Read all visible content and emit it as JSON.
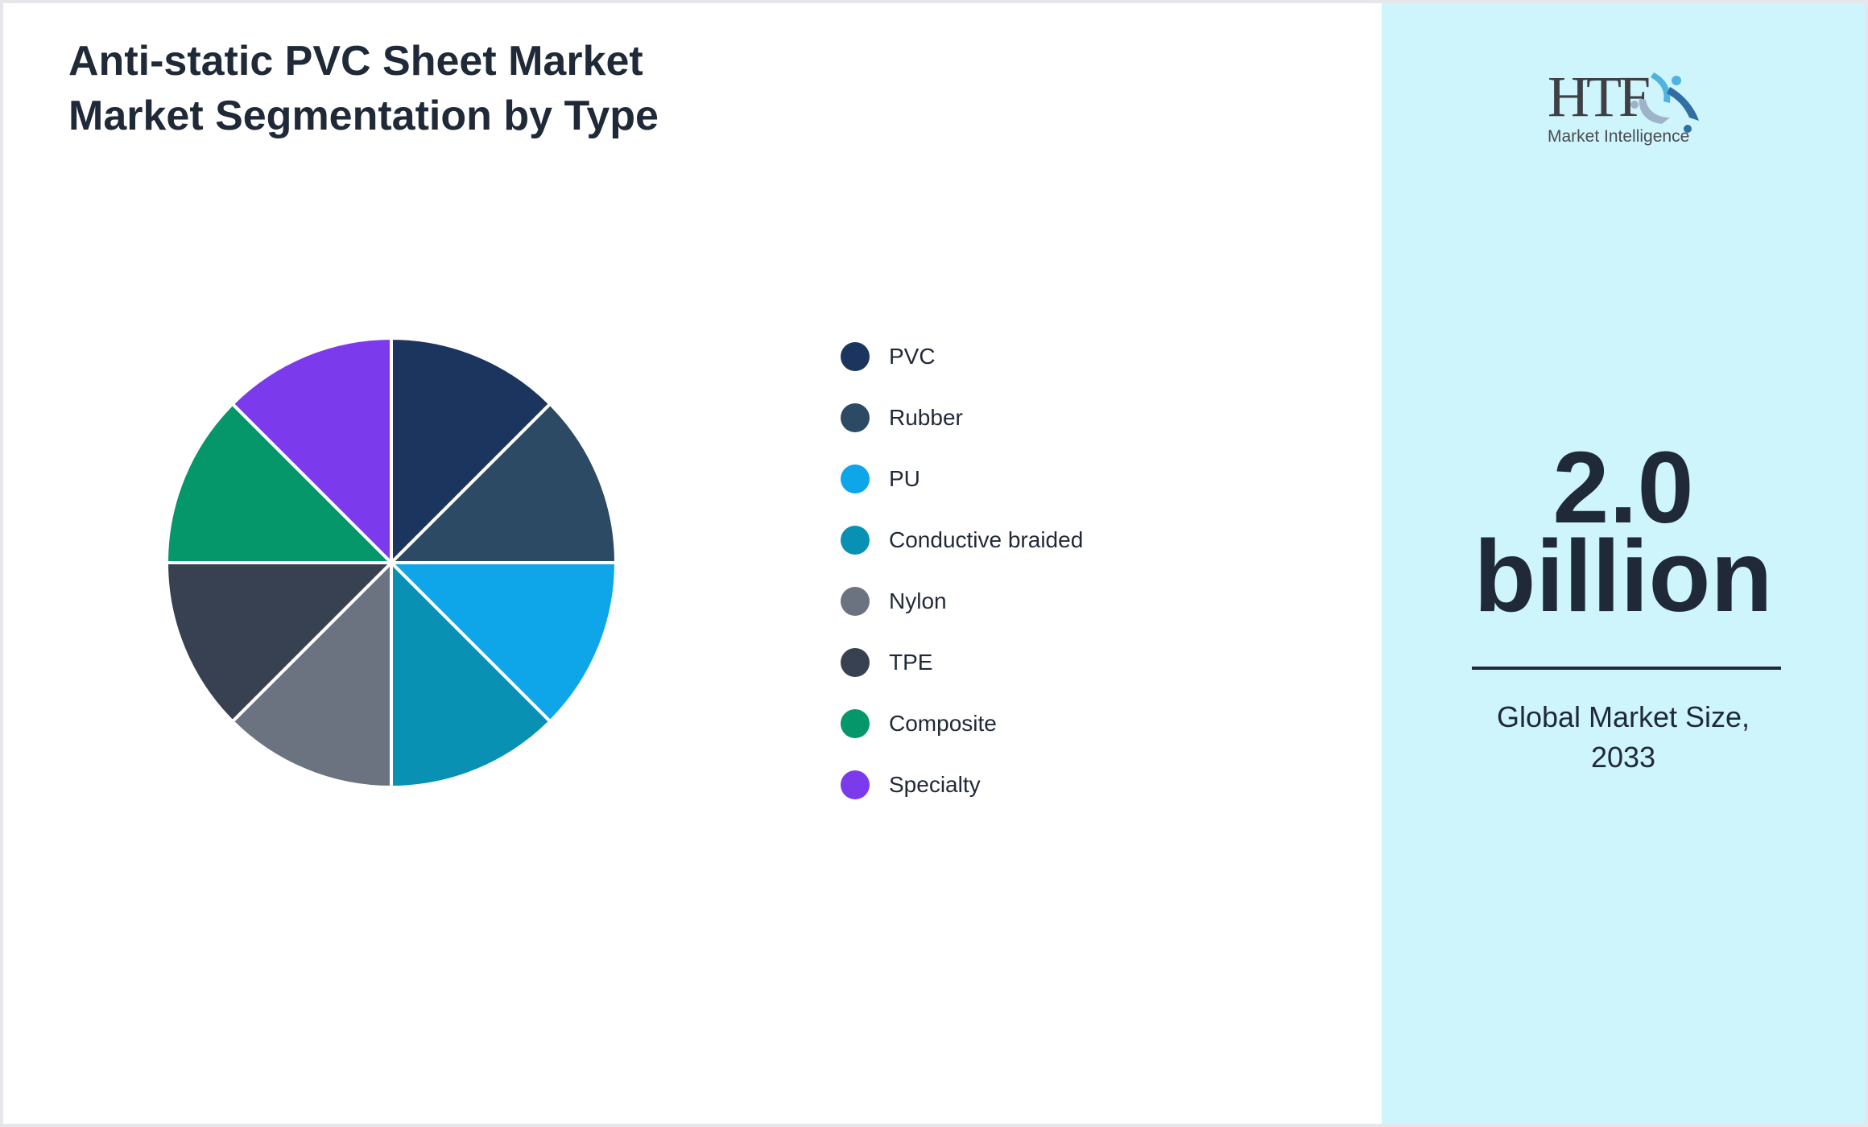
{
  "header": {
    "title_line1": "Anti-static PVC Sheet Market",
    "title_line2": "Market Segmentation by Type"
  },
  "legend": {
    "items": [
      {
        "label": "PVC",
        "color": "#1c355e"
      },
      {
        "label": "Rubber",
        "color": "#2d4a65"
      },
      {
        "label": "PU",
        "color": "#0ea5e9"
      },
      {
        "label": "Conductive braided",
        "color": "#0891b2"
      },
      {
        "label": "Nylon",
        "color": "#6b7280"
      },
      {
        "label": "TPE",
        "color": "#374151"
      },
      {
        "label": "Composite",
        "color": "#059669"
      },
      {
        "label": "Specialty",
        "color": "#7c3aed"
      }
    ]
  },
  "side_panel": {
    "logo": {
      "brand": "HTF",
      "tagline": "Market Intelligence"
    },
    "value_line1": "2.0",
    "value_line2": "billion",
    "caption_line1": "Global Market Size,",
    "caption_line2": "2033",
    "background": "#cff5fc"
  },
  "chart_data": {
    "type": "pie",
    "title": "Anti-static PVC Sheet Market Market Segmentation by Type",
    "categories": [
      "PVC",
      "Rubber",
      "PU",
      "Conductive braided",
      "Nylon",
      "TPE",
      "Composite",
      "Specialty"
    ],
    "values": [
      12.5,
      12.5,
      12.5,
      12.5,
      12.5,
      12.5,
      12.5,
      12.5
    ],
    "colors": [
      "#1c355e",
      "#2d4a65",
      "#0ea5e9",
      "#0891b2",
      "#6b7280",
      "#374151",
      "#059669",
      "#7c3aed"
    ],
    "start_angle": "12 o'clock, clockwise",
    "legend_position": "right",
    "annotation": "2.0 billion — Global Market Size, 2033"
  }
}
